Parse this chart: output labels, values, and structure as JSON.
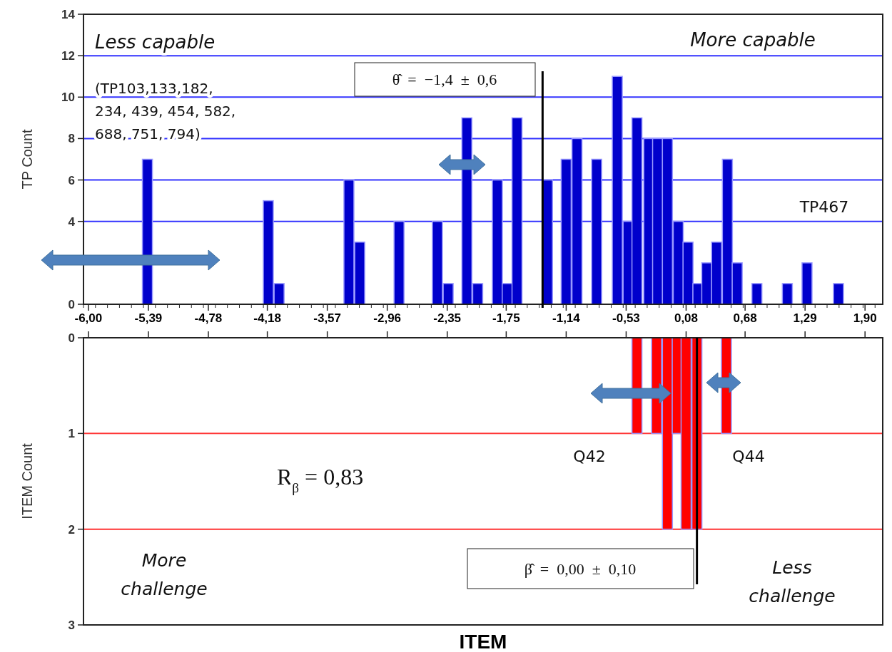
{
  "chart_data": [
    {
      "type": "bar",
      "ylabel": "TP Count",
      "color": "#0000cc",
      "grid": "y",
      "x": [
        -5.4,
        -4.17,
        -4.06,
        -3.35,
        -3.24,
        -2.84,
        -2.45,
        -2.34,
        -2.15,
        -2.04,
        -1.84,
        -1.74,
        -1.64,
        -1.33,
        -1.14,
        -1.03,
        -0.83,
        -0.62,
        -0.51,
        -0.42,
        -0.3,
        -0.21,
        -0.11,
        0.0,
        0.1,
        0.2,
        0.29,
        0.39,
        0.5,
        0.6,
        0.8,
        1.11,
        1.31,
        1.63
      ],
      "values": [
        7,
        5,
        1,
        6,
        3,
        4,
        4,
        1,
        9,
        1,
        6,
        1,
        9,
        6,
        7,
        8,
        7,
        11,
        4,
        9,
        8,
        8,
        8,
        4,
        3,
        1,
        2,
        3,
        7,
        2,
        1,
        1,
        2,
        1
      ],
      "xlim": [
        -6.05,
        2.08
      ],
      "xticks": [
        {
          "value": -6.0,
          "label": "-6,00"
        },
        {
          "value": -5.39,
          "label": "-5,39"
        },
        {
          "value": -4.78,
          "label": "-4,78"
        },
        {
          "value": -4.18,
          "label": "-4,18"
        },
        {
          "value": -3.57,
          "label": "-3,57"
        },
        {
          "value": -2.96,
          "label": "-2,96"
        },
        {
          "value": -2.35,
          "label": "-2,35"
        },
        {
          "value": -1.75,
          "label": "-1,75"
        },
        {
          "value": -1.14,
          "label": "-1,14"
        },
        {
          "value": -0.53,
          "label": "-0,53"
        },
        {
          "value": 0.08,
          "label": "0,08"
        },
        {
          "value": 0.68,
          "label": "0,68"
        },
        {
          "value": 1.29,
          "label": "1,29"
        },
        {
          "value": 1.9,
          "label": "1,90"
        }
      ],
      "ylim": [
        0,
        14
      ],
      "yticks": [
        0,
        {
          "value": 2,
          "label": null
        },
        4,
        6,
        8,
        10,
        12,
        14
      ],
      "ref_lines": [
        {
          "axis": "x",
          "value": -1.38,
          "color": "#000000"
        }
      ],
      "annotations": [
        "Less capable",
        "More capable",
        "(TP103,133,182, 234, 439, 454, 582, 688, 751, 794)",
        "TP467",
        "θ̂  =  −1,4  ±  0,6"
      ]
    },
    {
      "type": "bar",
      "ylabel": "ITEM Count",
      "xlabel": "ITEM",
      "color": "#ff0000",
      "grid": "y",
      "tick_labels": "y",
      "x": [
        -0.42,
        -0.22,
        -0.11,
        -0.01,
        0.08,
        0.19,
        0.49
      ],
      "values": [
        1,
        1,
        2,
        1,
        2,
        2,
        1
      ],
      "xlim": [
        -6.05,
        2.08
      ],
      "xticks": [
        -6.0,
        -5.39,
        -4.78,
        -4.18,
        -3.57,
        -2.96,
        -2.35,
        -1.75,
        -1.14,
        -0.53,
        0.08,
        0.68,
        1.29,
        1.9
      ],
      "ylim": [
        3,
        0
      ],
      "yticks": [
        0,
        1,
        2,
        3
      ],
      "ref_lines": [
        {
          "axis": "x",
          "value": 0.19,
          "color": "#000000"
        }
      ],
      "annotations": [
        "Q42",
        "Q44",
        "R$_{β}$ = 0,83",
        "More challenge",
        "Less challenge",
        "β̂  =  0,00  ±  0,10"
      ]
    }
  ]
}
